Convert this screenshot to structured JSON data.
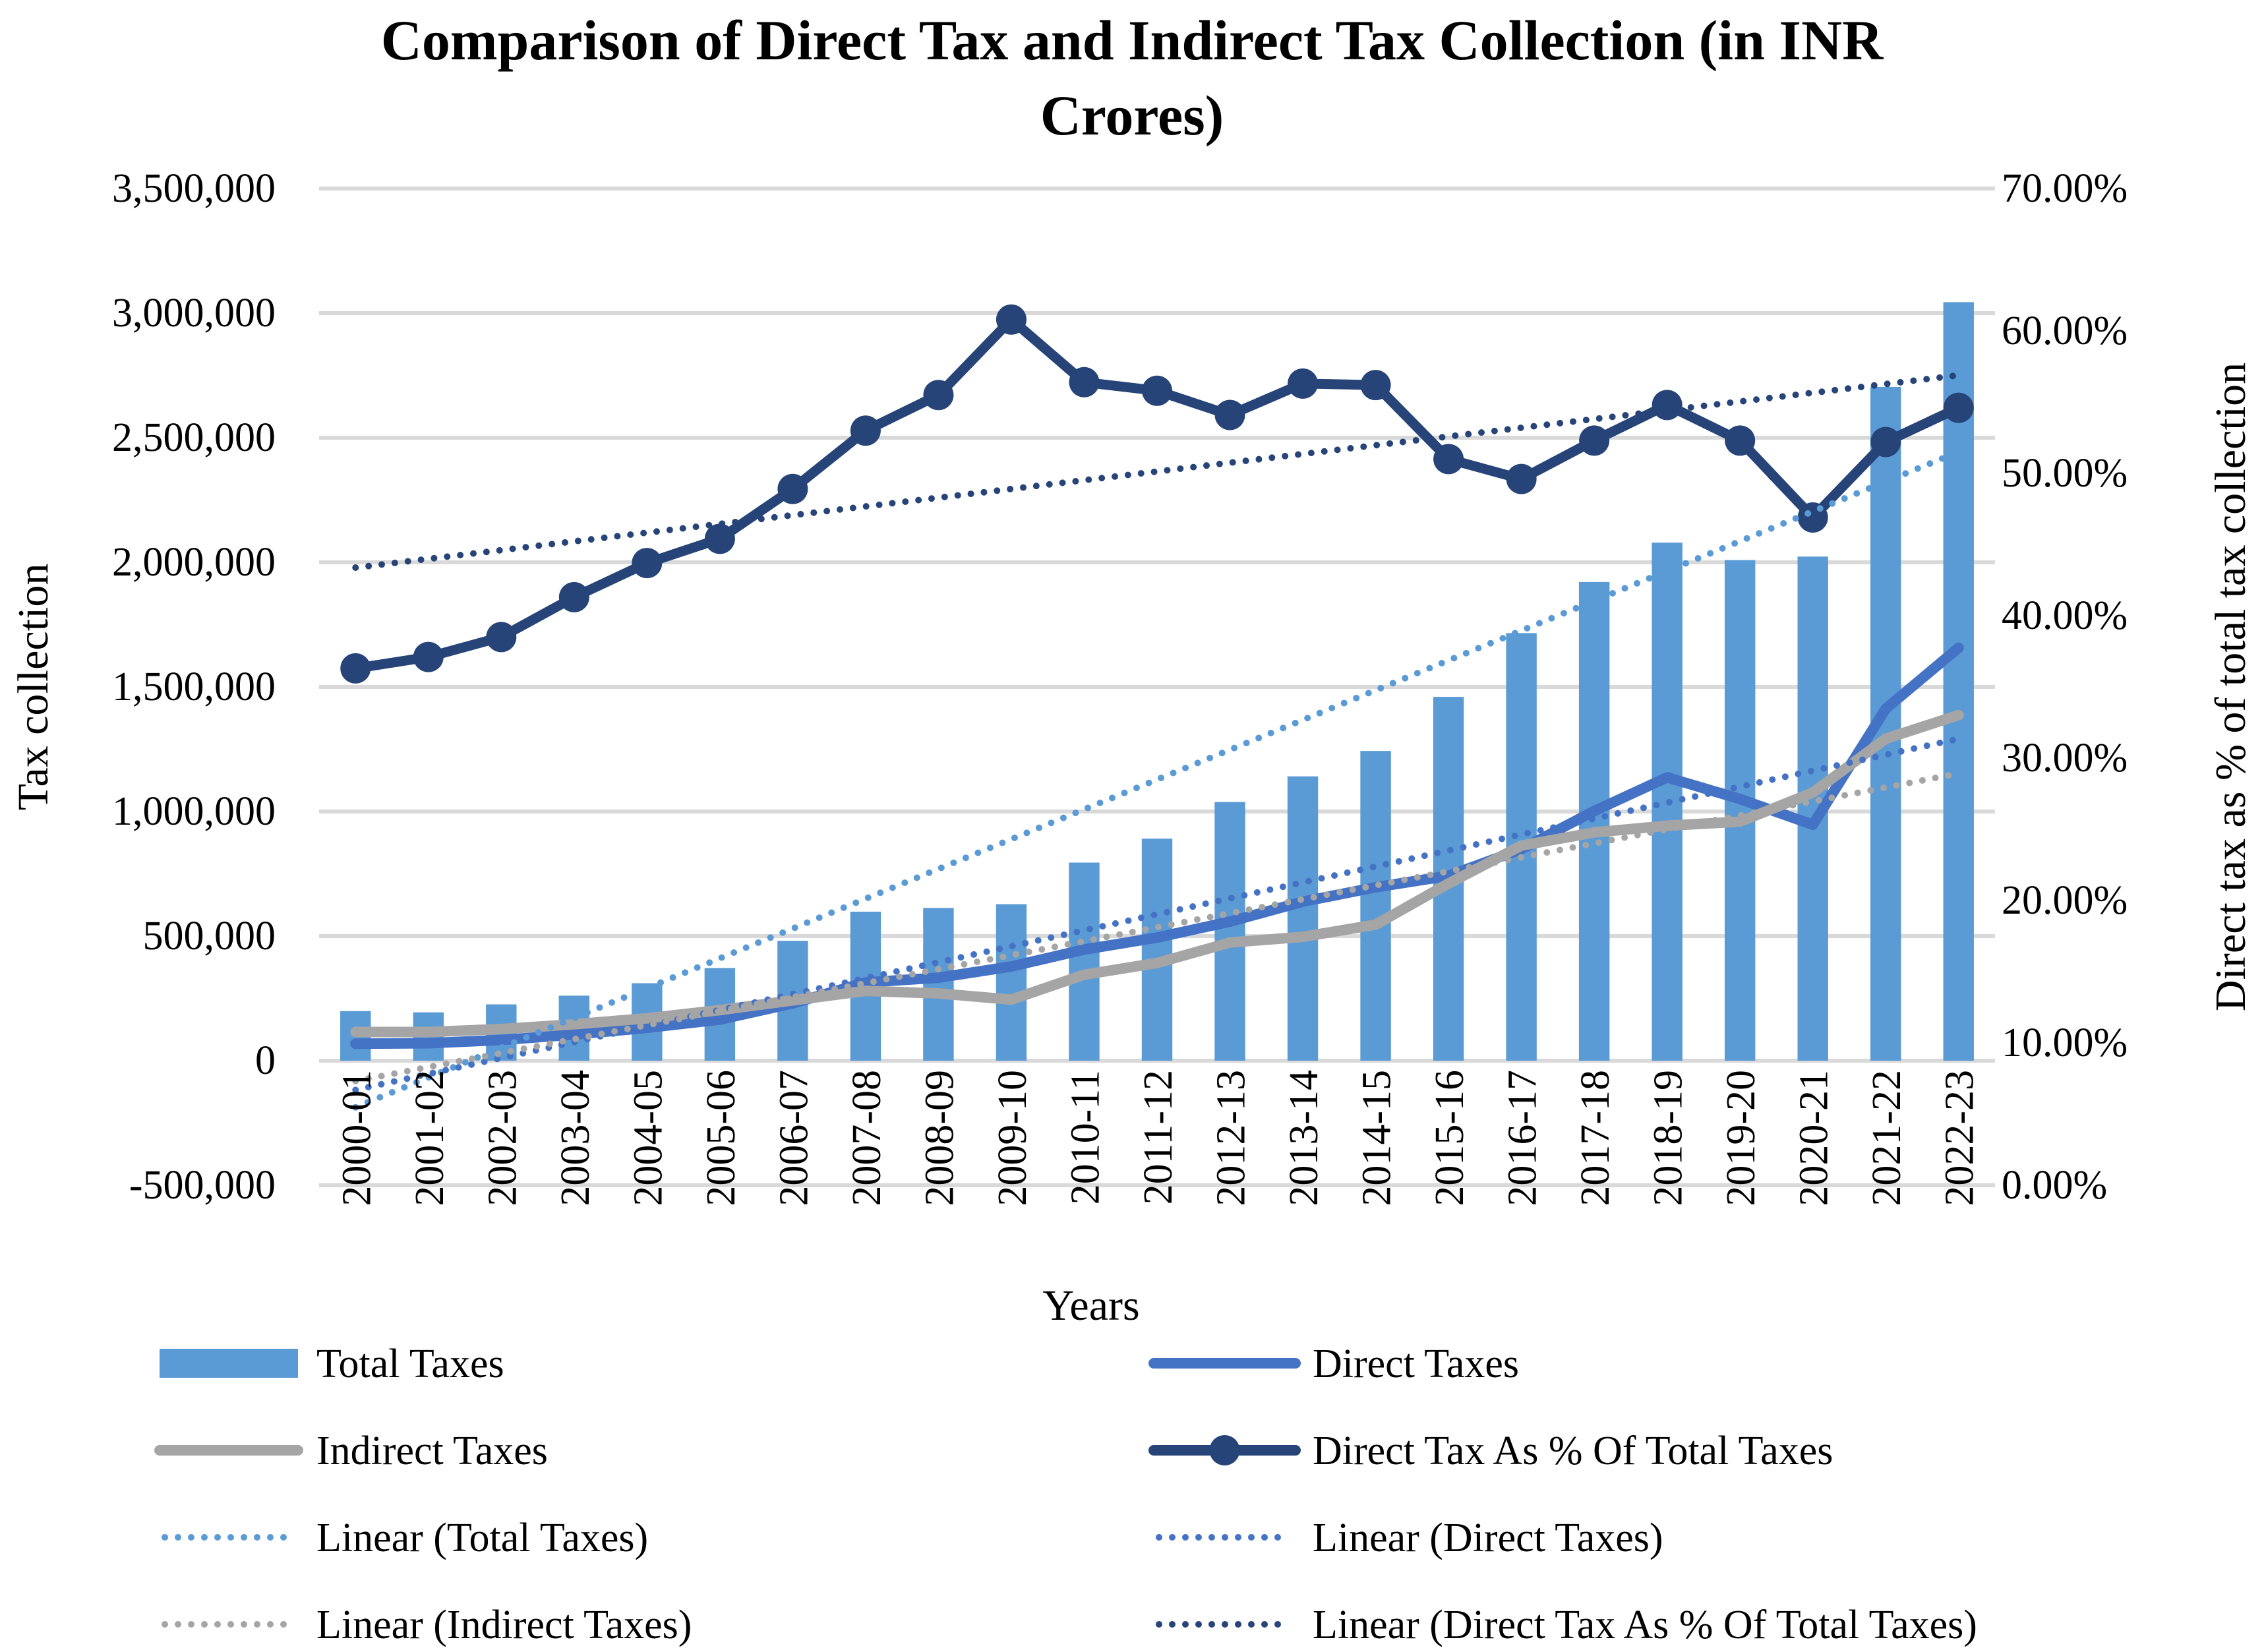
{
  "chart_data": {
    "type": "bar",
    "title_lines": [
      "Comparison of Direct Tax and Indirect Tax Collection (in INR",
      "Crores)"
    ],
    "xlabel": "Years",
    "ylabel": "Tax collection",
    "y2label": "Direct tax as % of total tax collection",
    "ylim": [
      -500000,
      3500000
    ],
    "y_ticks": [
      -500000,
      0,
      500000,
      1000000,
      1500000,
      2000000,
      2500000,
      3000000,
      3500000
    ],
    "y_tick_labels": [
      "-500,000",
      "0",
      "500,000",
      "1,000,000",
      "1,500,000",
      "2,000,000",
      "2,500,000",
      "3,000,000",
      "3,500,000"
    ],
    "y2lim": [
      0,
      70
    ],
    "y2_tick_labels": [
      "0.00%",
      "10.00%",
      "20.00%",
      "30.00%",
      "40.00%",
      "50.00%",
      "60.00%",
      "70.00%"
    ],
    "grid": true,
    "legend_placement": "bottom",
    "categories": [
      "2000-01",
      "2001-02",
      "2002-03",
      "2003-04",
      "2004-05",
      "2005-06",
      "2006-07",
      "2007-08",
      "2008-09",
      "2009-10",
      "2010-11",
      "2011-12",
      "2012-13",
      "2013-14",
      "2014-15",
      "2015-16",
      "2016-17",
      "2017-18",
      "2018-19",
      "2019-20",
      "2020-21",
      "2021-22",
      "2022-23"
    ],
    "series": [
      {
        "name": "Total Taxes",
        "kind": "bar",
        "axis": "left",
        "color": "#5B9BD5",
        "values": [
          199000,
          194000,
          226000,
          261000,
          311000,
          372000,
          481000,
          598000,
          613000,
          628000,
          795000,
          891000,
          1038000,
          1141000,
          1243000,
          1460000,
          1716000,
          1921000,
          2079000,
          2009000,
          2023000,
          2704000,
          3044000
        ]
      },
      {
        "name": "Direct Taxes",
        "kind": "line",
        "axis": "left",
        "color": "#4472C4",
        "values": [
          68000,
          70000,
          83000,
          105000,
          132000,
          165000,
          230000,
          314000,
          333000,
          378000,
          446000,
          494000,
          558000,
          638000,
          696000,
          742000,
          849000,
          1002000,
          1137000,
          1050000,
          947000,
          1412000,
          1657000
        ]
      },
      {
        "name": "Indirect Taxes",
        "kind": "line",
        "axis": "left",
        "color": "#A5A5A5",
        "values": [
          115000,
          115000,
          127000,
          146000,
          170000,
          203000,
          242000,
          280000,
          270000,
          245000,
          345000,
          392000,
          474000,
          497000,
          546000,
          711000,
          863000,
          916000,
          943000,
          959000,
          1076000,
          1292000,
          1387000
        ]
      },
      {
        "name": "Direct Tax As % Of Total Taxes",
        "kind": "line-marker",
        "axis": "right",
        "color": "#264478",
        "values": [
          36.3,
          37.1,
          38.5,
          41.3,
          43.7,
          45.4,
          48.9,
          53.0,
          55.5,
          60.8,
          56.4,
          55.8,
          54.1,
          56.3,
          56.2,
          51.0,
          49.6,
          52.3,
          54.8,
          52.3,
          46.9,
          52.2,
          54.6
        ]
      }
    ],
    "trendlines": [
      {
        "name": "Linear (Total Taxes)",
        "of": 0,
        "color": "#5B9BD5"
      },
      {
        "name": "Linear (Direct Taxes)",
        "of": 1,
        "color": "#4472C4"
      },
      {
        "name": "Linear (Indirect Taxes)",
        "of": 2,
        "color": "#A5A5A5"
      },
      {
        "name": "Linear (Direct Tax As % Of Total Taxes)",
        "of": 3,
        "color": "#264478"
      }
    ],
    "legend_order": [
      "Total Taxes",
      "Direct Taxes",
      "Indirect Taxes",
      "Direct Tax As % Of Total Taxes",
      "Linear (Total Taxes)",
      "Linear (Direct Taxes)",
      "Linear (Indirect Taxes)",
      "Linear (Direct Tax As % Of Total Taxes)"
    ]
  }
}
